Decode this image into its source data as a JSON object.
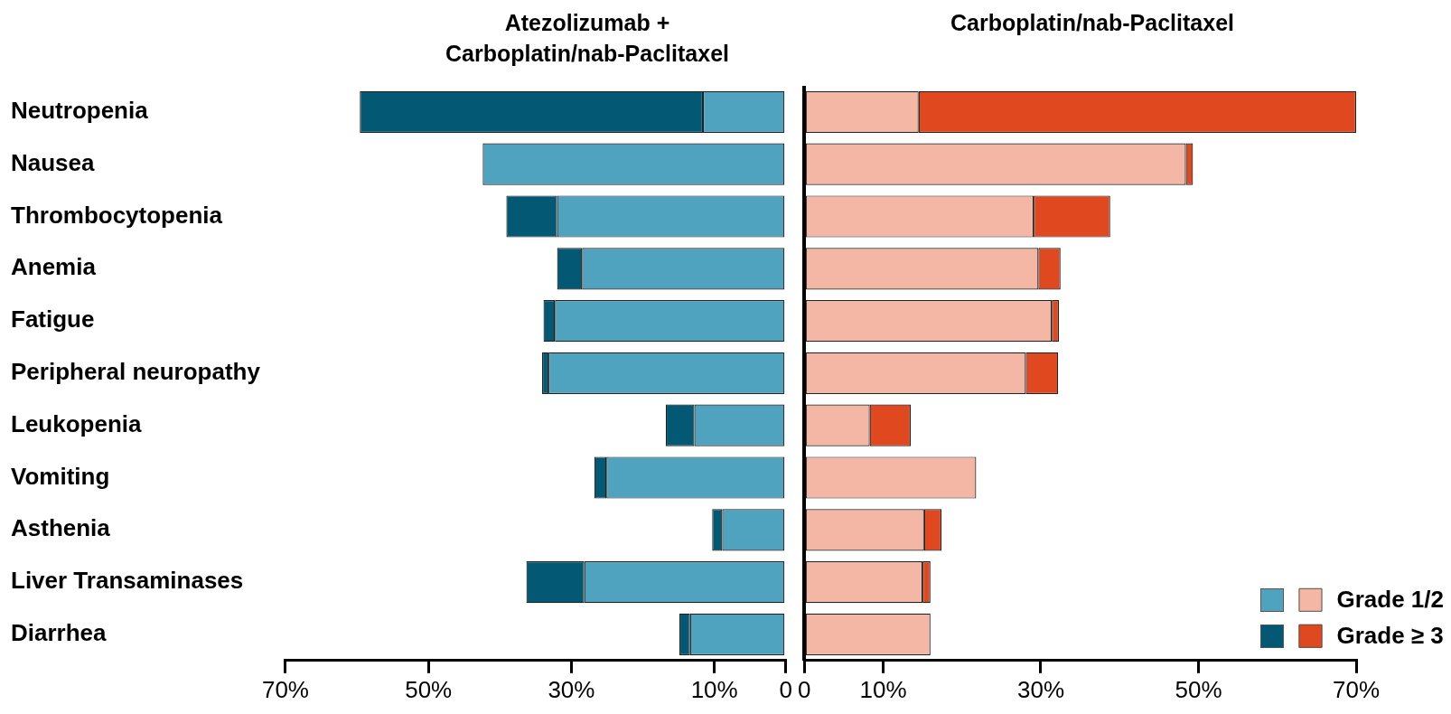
{
  "chart_data": [
    {
      "type": "bar",
      "orientation": "horizontal",
      "stacked": true,
      "title": "Atezolizumab +\nCarboplatin/nab-Paclitaxel",
      "categories": [
        "Neutropenia",
        "Nausea",
        "Thrombocytopenia",
        "Anemia",
        "Fatigue",
        "Peripheral neuropathy",
        "Leukopenia",
        "Vomiting",
        "Asthenia",
        "Liver Transaminases",
        "Diarrhea"
      ],
      "series": [
        {
          "color": "#4fa3bf",
          "values": [
            11.6,
            42.4,
            32.0,
            28.5,
            32.3,
            33.2,
            12.8,
            25.1,
            8.9,
            28.2,
            13.4
          ]
        },
        {
          "color": "#035873",
          "values": [
            48.0,
            null,
            7.1,
            3.5,
            1.6,
            0.9,
            4.0,
            1.7,
            1.4,
            8.1,
            1.5
          ]
        }
      ],
      "xlim": [
        70,
        0
      ],
      "xticks": [
        {
          "value": 70,
          "label": "70%"
        },
        {
          "value": 50,
          "label": "50%"
        },
        {
          "value": 30,
          "label": "30%"
        },
        {
          "value": 10,
          "label": "10%"
        },
        0
      ],
      "grid": false
    },
    {
      "type": "bar",
      "orientation": "horizontal",
      "stacked": true,
      "title": "Carboplatin/nab-Paclitaxel",
      "categories": [
        null,
        null,
        null,
        null,
        null,
        null,
        null,
        null,
        null,
        null,
        null
      ],
      "series": [
        {
          "name": "Grade 1/2",
          "color": "#f4b7a6",
          "values": [
            14.5,
            48.4,
            29.1,
            29.7,
            31.4,
            28.1,
            8.3,
            21.8,
            15.2,
            15.0,
            16.0
          ]
        },
        {
          "name": "Grade ≥ 3",
          "color": "#e0491f",
          "values": [
            55.5,
            0.9,
            9.7,
            2.8,
            0.9,
            4.1,
            5.2,
            null,
            2.2,
            1.0,
            null
          ]
        }
      ],
      "xlim": [
        0,
        70
      ],
      "xticks": [
        0,
        {
          "value": 10,
          "label": "10%"
        },
        {
          "value": 30,
          "label": "30%"
        },
        {
          "value": 50,
          "label": "50%"
        },
        {
          "value": 70,
          "label": "70%"
        }
      ],
      "grid": false,
      "legend": "bottom right",
      "tick_labels": "x"
    }
  ]
}
